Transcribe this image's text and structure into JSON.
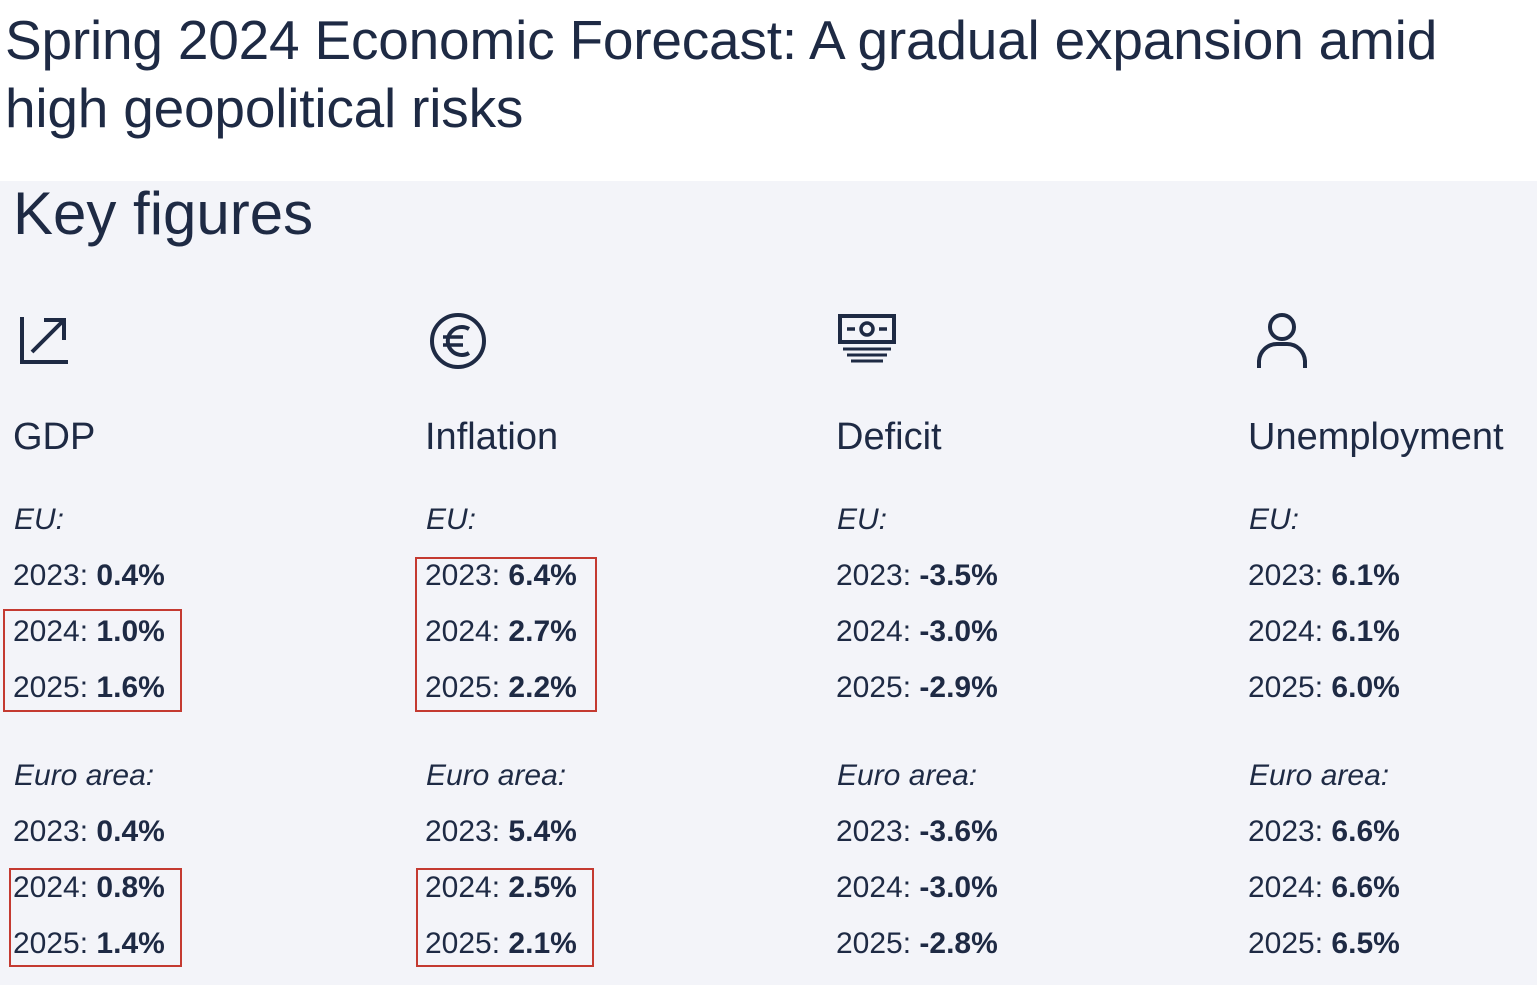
{
  "header": {
    "title": "Spring 2024 Economic Forecast: A gradual expansion amid high geopolitical risks"
  },
  "section": {
    "title": "Key figures"
  },
  "colors": {
    "text": "#1e2a44",
    "panel_background": "#f3f4f9",
    "highlight_border": "#c43a31"
  },
  "indicators": [
    {
      "title": "GDP",
      "icon": "trend-arrow-icon",
      "eu_label": "EU:",
      "euro_area_label": "Euro area:",
      "eu": [
        {
          "year": "2023",
          "value": "0.4%"
        },
        {
          "year": "2024",
          "value": "1.0%"
        },
        {
          "year": "2025",
          "value": "1.6%"
        }
      ],
      "euro_area": [
        {
          "year": "2023",
          "value": "0.4%"
        },
        {
          "year": "2024",
          "value": "0.8%"
        },
        {
          "year": "2025",
          "value": "1.4%"
        }
      ]
    },
    {
      "title": "Inflation",
      "icon": "euro-icon",
      "eu_label": "EU:",
      "euro_area_label": "Euro area:",
      "eu": [
        {
          "year": "2023",
          "value": "6.4%"
        },
        {
          "year": "2024",
          "value": "2.7%"
        },
        {
          "year": "2025",
          "value": "2.2%"
        }
      ],
      "euro_area": [
        {
          "year": "2023",
          "value": "5.4%"
        },
        {
          "year": "2024",
          "value": "2.5%"
        },
        {
          "year": "2025",
          "value": "2.1%"
        }
      ]
    },
    {
      "title": "Deficit",
      "icon": "banknote-icon",
      "eu_label": "EU:",
      "euro_area_label": "Euro area:",
      "eu": [
        {
          "year": "2023",
          "value": "-3.5%"
        },
        {
          "year": "2024",
          "value": "-3.0%"
        },
        {
          "year": "2025",
          "value": "-2.9%"
        }
      ],
      "euro_area": [
        {
          "year": "2023",
          "value": "-3.6%"
        },
        {
          "year": "2024",
          "value": "-3.0%"
        },
        {
          "year": "2025",
          "value": "-2.8%"
        }
      ]
    },
    {
      "title": "Unemployment",
      "icon": "person-icon",
      "eu_label": "EU:",
      "euro_area_label": "Euro area:",
      "eu": [
        {
          "year": "2023",
          "value": "6.1%"
        },
        {
          "year": "2024",
          "value": "6.1%"
        },
        {
          "year": "2025",
          "value": "6.0%"
        }
      ],
      "euro_area": [
        {
          "year": "2023",
          "value": "6.6%"
        },
        {
          "year": "2024",
          "value": "6.6%"
        },
        {
          "year": "2025",
          "value": "6.5%"
        }
      ]
    }
  ]
}
